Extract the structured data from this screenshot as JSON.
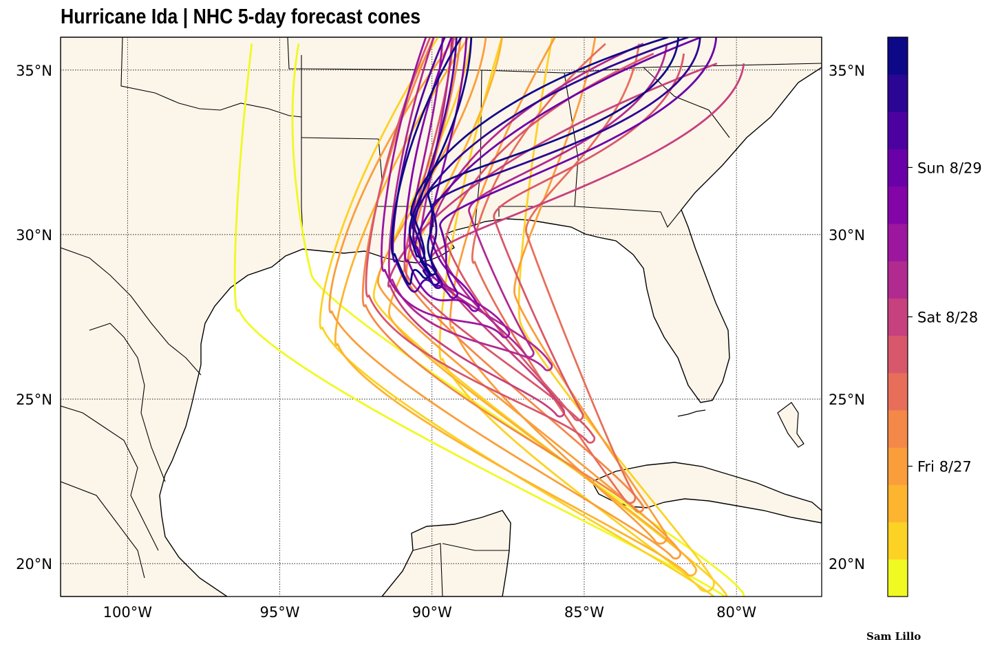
{
  "title": "Hurricane Ida | NHC 5-day forecast cones",
  "credit": "Sam Lillo",
  "colors": {
    "land": "#fcf5ea",
    "ocean": "#ffffff",
    "border": "#000000",
    "grid": "#000000"
  },
  "map": {
    "lon_range": [
      -102.2,
      -77.2
    ],
    "lat_range": [
      19.0,
      36.0
    ],
    "lat_ticks": [
      {
        "value": 20,
        "label": "20°N"
      },
      {
        "value": 25,
        "label": "25°N"
      },
      {
        "value": 30,
        "label": "30°N"
      },
      {
        "value": 35,
        "label": "35°N"
      }
    ],
    "lon_ticks": [
      {
        "value": -100,
        "label": "100°W"
      },
      {
        "value": -95,
        "label": "95°W"
      },
      {
        "value": -90,
        "label": "90°W"
      },
      {
        "value": -85,
        "label": "85°W"
      },
      {
        "value": -80,
        "label": "80°W"
      }
    ]
  },
  "colorbar": {
    "colors": [
      "#f0f921",
      "#fcd225",
      "#fdb42f",
      "#fa9e3b",
      "#f48849",
      "#e76f5a",
      "#d8576b",
      "#c6417d",
      "#b12a90",
      "#9c179e",
      "#8405a7",
      "#6a00a8",
      "#4c02a1",
      "#2b0594",
      "#0d0887"
    ],
    "labels": [
      {
        "label": "Fri 8/27",
        "position": 0.233
      },
      {
        "label": "Sat 8/28",
        "position": 0.5
      },
      {
        "label": "Sun 8/29",
        "position": 0.767
      }
    ]
  },
  "cones": [
    {
      "level": 0,
      "tip": [
        -80.0,
        19.0
      ],
      "bend": [
        -94.8,
        28.0
      ],
      "end": [
        -94.8,
        35.8
      ],
      "width": 1.4
    },
    {
      "level": 1,
      "tip": [
        -80.5,
        19.0
      ],
      "bend": [
        -92.5,
        27.5
      ],
      "end": [
        -89.0,
        36.0
      ],
      "width": 1.0
    },
    {
      "level": 1,
      "tip": [
        -81.0,
        19.4
      ],
      "bend": [
        -88.0,
        26.5
      ],
      "end": [
        -86.5,
        36.0
      ],
      "width": 1.5
    },
    {
      "level": 2,
      "tip": [
        -81.5,
        19.8
      ],
      "bend": [
        -92.0,
        27.0
      ],
      "end": [
        -88.0,
        36.0
      ],
      "width": 1.0
    },
    {
      "level": 3,
      "tip": [
        -82.0,
        20.3
      ],
      "bend": [
        -92.3,
        28.0
      ],
      "end": [
        -88.5,
        36.0
      ],
      "width": 0.9
    },
    {
      "level": 3,
      "tip": [
        -82.5,
        20.8
      ],
      "bend": [
        -88.0,
        27.5
      ],
      "end": [
        -85.0,
        36.0
      ],
      "width": 1.2
    },
    {
      "level": 4,
      "tip": [
        -83.2,
        21.7
      ],
      "bend": [
        -91.3,
        28.2
      ],
      "end": [
        -89.3,
        36.0
      ],
      "width": 0.8
    },
    {
      "level": 5,
      "tip": [
        -83.5,
        22.0
      ],
      "bend": [
        -87.5,
        29.5
      ],
      "end": [
        -83.5,
        35.8
      ],
      "width": 1.0
    },
    {
      "level": 6,
      "tip": [
        -84.8,
        23.8
      ],
      "bend": [
        -91.3,
        28.5
      ],
      "end": [
        -89.5,
        36.0
      ],
      "width": 0.7
    },
    {
      "level": 6,
      "tip": [
        -85.2,
        24.5
      ],
      "bend": [
        -88.5,
        30.0
      ],
      "end": [
        -82.0,
        35.5
      ],
      "width": 0.9
    },
    {
      "level": 7,
      "tip": [
        -85.8,
        24.6
      ],
      "bend": [
        -90.5,
        28.8
      ],
      "end": [
        -80.0,
        35.2
      ],
      "width": 0.8
    },
    {
      "level": 8,
      "tip": [
        -86.2,
        26.0
      ],
      "bend": [
        -90.7,
        29.0
      ],
      "end": [
        -89.5,
        36.0
      ],
      "width": 0.55
    },
    {
      "level": 8,
      "tip": [
        -86.8,
        26.4
      ],
      "bend": [
        -89.2,
        30.3
      ],
      "end": [
        -82.5,
        35.8
      ],
      "width": 0.7
    },
    {
      "level": 9,
      "tip": [
        -87.6,
        27.0
      ],
      "bend": [
        -91.0,
        29.3
      ],
      "end": [
        -89.8,
        36.0
      ],
      "width": 0.5
    },
    {
      "level": 10,
      "tip": [
        -88.6,
        27.8
      ],
      "bend": [
        -90.3,
        29.6
      ],
      "end": [
        -89.0,
        36.0
      ],
      "width": 0.45
    },
    {
      "level": 11,
      "tip": [
        -89.3,
        28.2
      ],
      "bend": [
        -90.0,
        30.0
      ],
      "end": [
        -80.8,
        36.0
      ],
      "width": 0.45
    },
    {
      "level": 12,
      "tip": [
        -89.8,
        28.5
      ],
      "bend": [
        -90.8,
        29.6
      ],
      "end": [
        -89.3,
        36.0
      ],
      "width": 0.35
    },
    {
      "level": 13,
      "tip": [
        -89.9,
        28.6
      ],
      "bend": [
        -90.2,
        30.6
      ],
      "end": [
        -81.3,
        36.0
      ],
      "width": 0.35
    },
    {
      "level": 14,
      "tip": [
        -90.2,
        28.8
      ],
      "bend": [
        -90.9,
        29.8
      ],
      "end": [
        -88.8,
        36.0
      ],
      "width": 0.3
    },
    {
      "level": 14,
      "tip": [
        -90.0,
        28.9
      ],
      "bend": [
        -90.3,
        31.0
      ],
      "end": [
        -82.0,
        36.0
      ],
      "width": 0.3
    }
  ]
}
